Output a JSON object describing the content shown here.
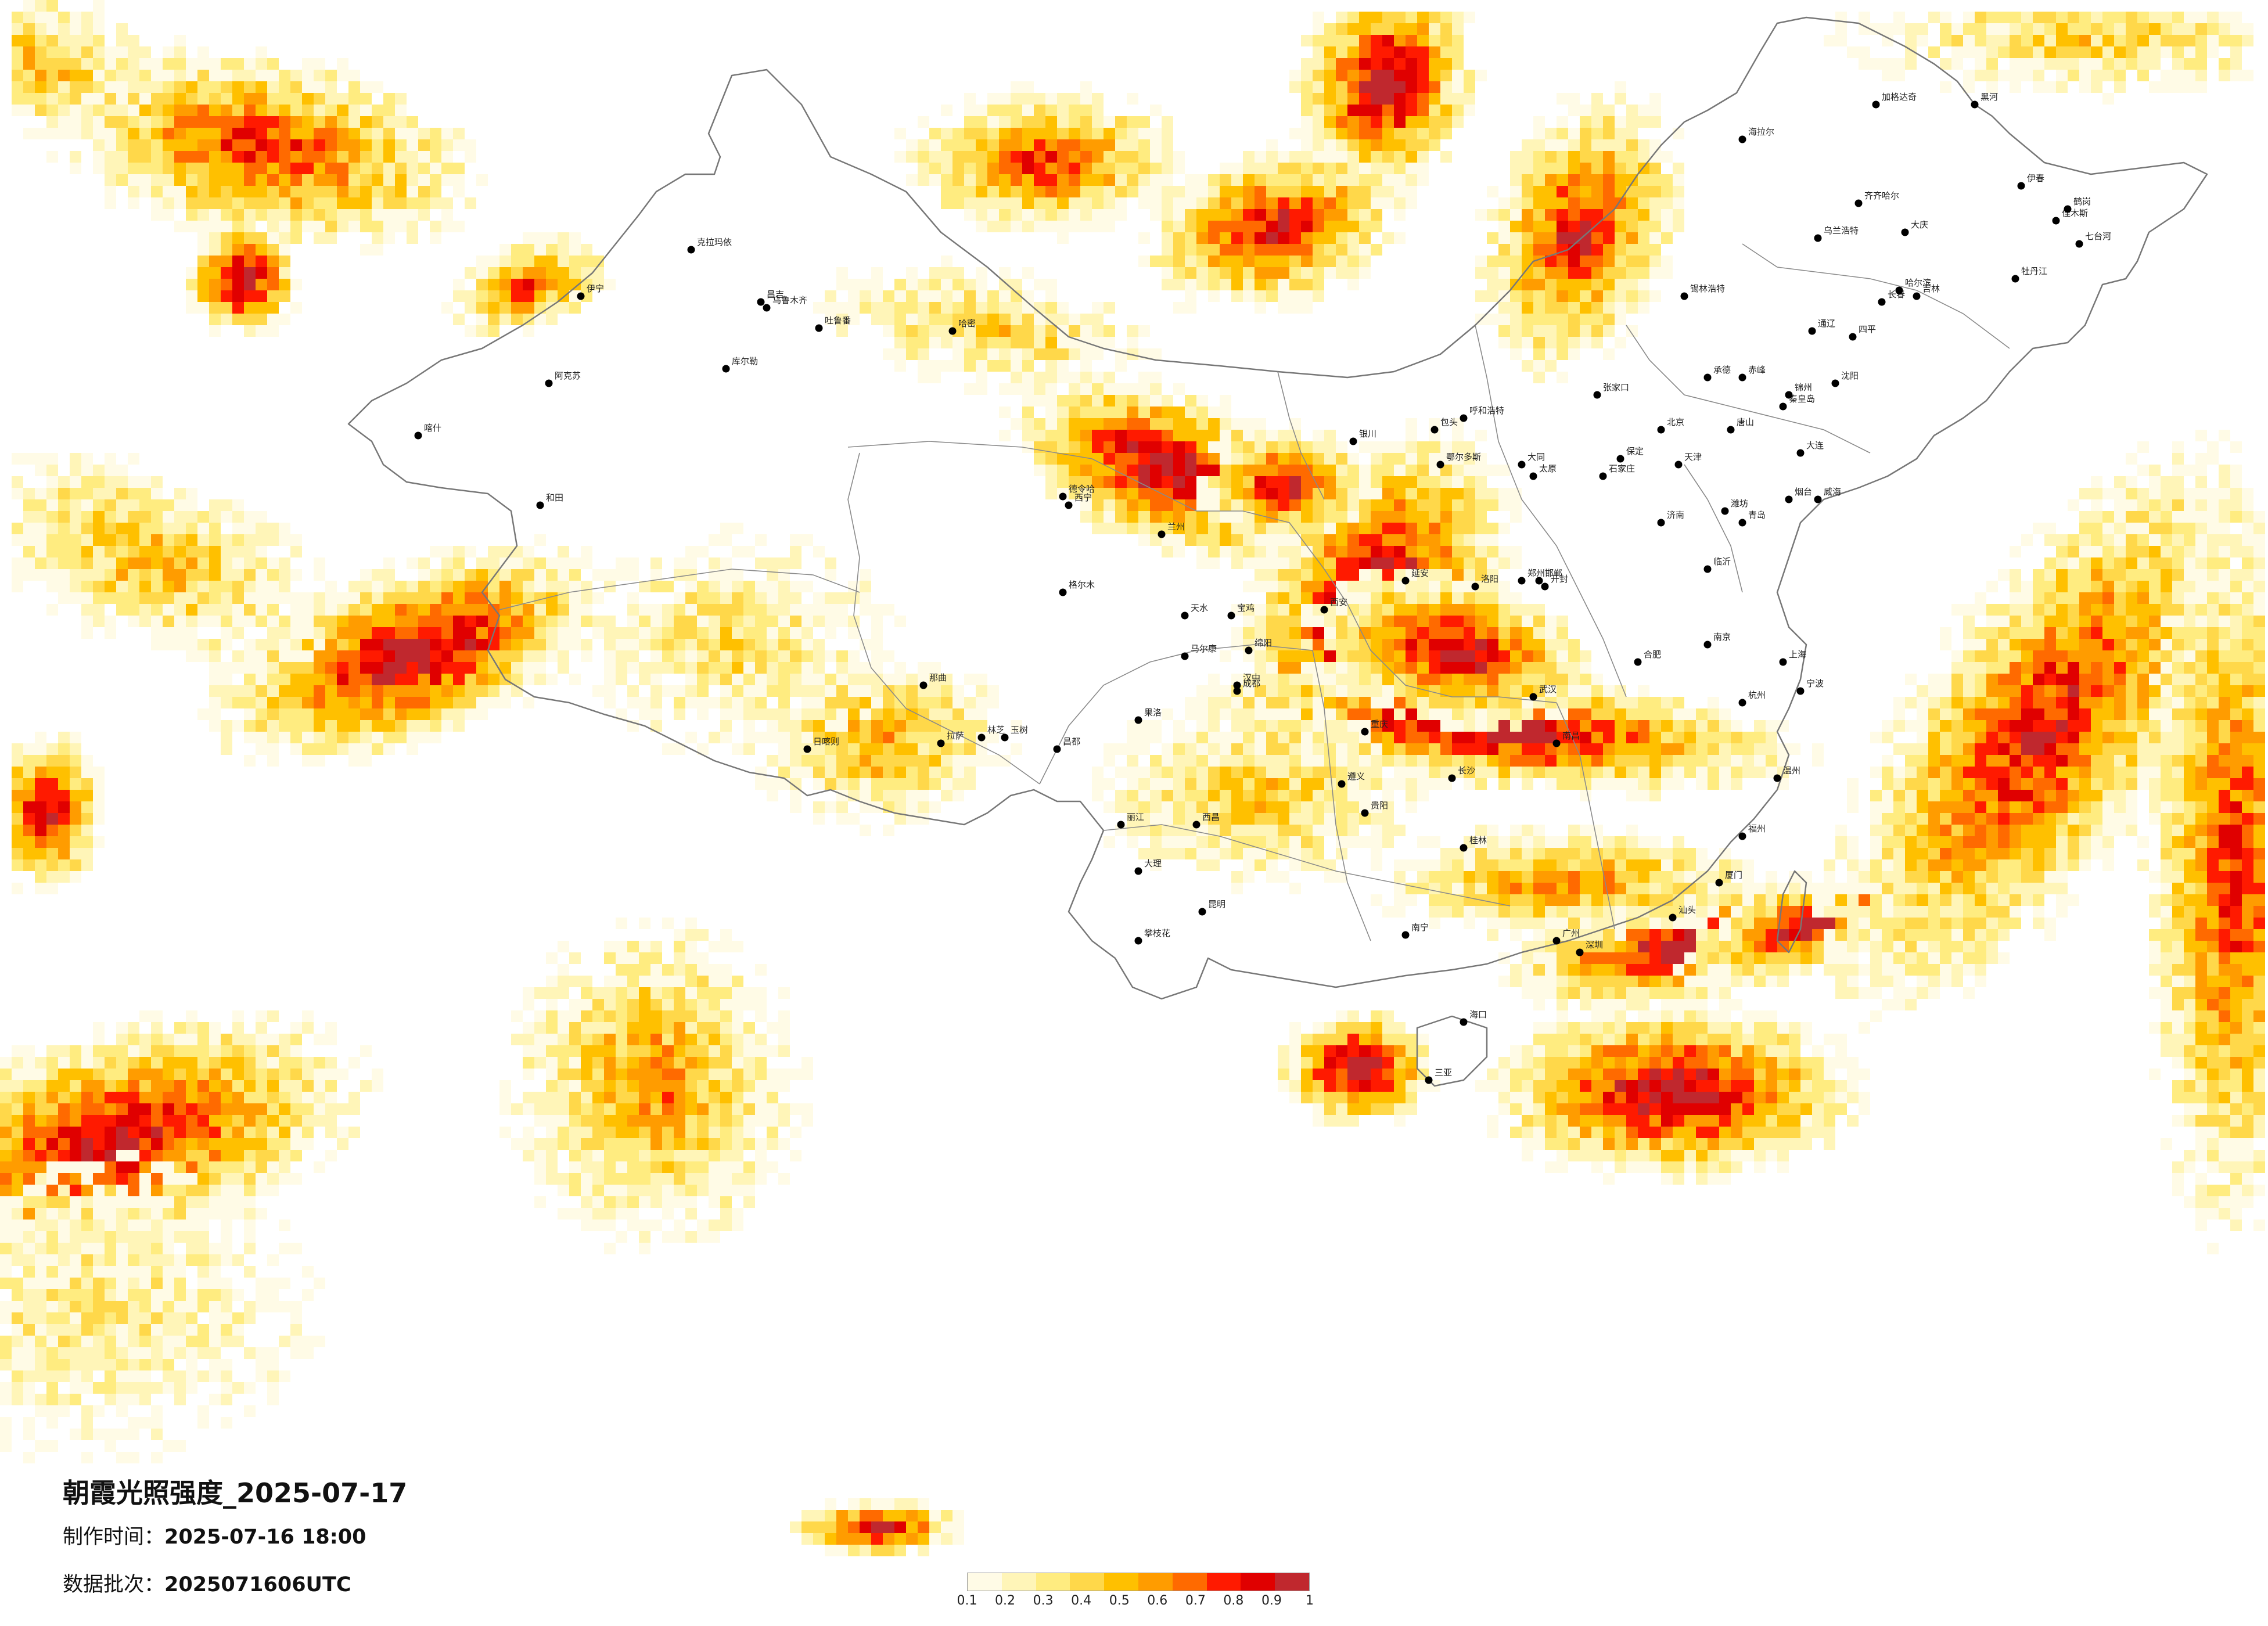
{
  "title": "朝霞光照强度_2025-07-17",
  "made_time_label": "制作时间：",
  "made_time_value": "2025-07-16 18:00",
  "batch_label": "数据批次：",
  "batch_value": "2025071606UTC",
  "legend": {
    "ticks": [
      "0.1",
      "0.2",
      "0.3",
      "0.4",
      "0.5",
      "0.6",
      "0.7",
      "0.8",
      "0.9",
      "1"
    ],
    "colors": [
      "#fffbe6",
      "#fff5b8",
      "#ffec80",
      "#ffd84a",
      "#ffc000",
      "#ff9c00",
      "#ff6a00",
      "#ff1a00",
      "#e00000",
      "#c0282e"
    ]
  },
  "colors": {
    "border": "#777777",
    "city_dot": "#000000"
  },
  "cities": [
    "伊宁",
    "克拉玛依",
    "昌吉",
    "乌鲁木齐",
    "吐鲁番",
    "哈密",
    "库尔勒",
    "阿克苏",
    "喀什",
    "和田",
    "格尔木",
    "德令哈",
    "西宁",
    "兰州",
    "银川",
    "呼和浩特",
    "包头",
    "鄂尔多斯",
    "大同",
    "张家口",
    "北京",
    "天津",
    "唐山",
    "秦皇岛",
    "承德",
    "赤峰",
    "通辽",
    "沈阳",
    "大连",
    "锦州",
    "长春",
    "吉林",
    "四平",
    "哈尔滨",
    "齐齐哈尔",
    "大庆",
    "牡丹江",
    "佳木斯",
    "鹤岗",
    "七台河",
    "海拉尔",
    "加格达奇",
    "黑河",
    "伊春",
    "乌兰浩特",
    "锡林浩特",
    "太原",
    "石家庄",
    "保定",
    "邯郸",
    "济南",
    "青岛",
    "烟台",
    "威海",
    "潍坊",
    "临沂",
    "郑州",
    "洛阳",
    "开封",
    "西安",
    "宝鸡",
    "汉中",
    "延安",
    "天水",
    "合肥",
    "南京",
    "上海",
    "杭州",
    "宁波",
    "温州",
    "武汉",
    "长沙",
    "南昌",
    "福州",
    "厦门",
    "广州",
    "深圳",
    "汕头",
    "南宁",
    "桂林",
    "海口",
    "三亚",
    "昆明",
    "大理",
    "丽江",
    "贵阳",
    "遵义",
    "成都",
    "重庆",
    "绵阳",
    "拉萨",
    "日喀则",
    "林芝",
    "那曲",
    "昌都",
    "玉树",
    "果洛",
    "马尔康",
    "西昌",
    "攀枝花"
  ]
}
